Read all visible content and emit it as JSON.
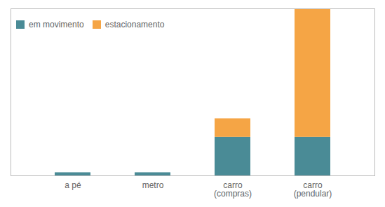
{
  "chart_data": {
    "type": "bar",
    "stacked": true,
    "categories": [
      "a pé",
      "metro",
      "carro\n(compras)",
      "carro\n(pendular)"
    ],
    "series": [
      {
        "name": "em movimento",
        "color": "#4a8b96",
        "values": [
          0.018,
          0.018,
          0.22,
          0.22
        ]
      },
      {
        "name": "estacionamento",
        "color": "#f5a545",
        "values": [
          0.0,
          0.0,
          0.105,
          0.73
        ]
      }
    ],
    "ylim": [
      0,
      0.95
    ],
    "tick_labels": "x",
    "grid": false,
    "legend": "upper left"
  }
}
